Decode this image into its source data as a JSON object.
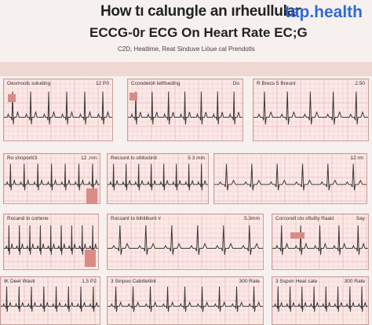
{
  "header": {
    "title_line1": "How tı calungle an ırheullular",
    "title_line2": "ECCG-0r ECG On Heart Rate EC;G",
    "subtitle": "C2D, Heatlime, Reat Sinduve Liöue cal Prendotls",
    "brand": "tap.health"
  },
  "panels": [
    {
      "label": "Oesmools soluding",
      "rlabel": "12 P0",
      "beats": 6
    },
    {
      "label": "Ccondetoll Ietlfoeding",
      "rlabel": "Do",
      "beats": 7
    },
    {
      "label": "R Brecs 5 Breunt",
      "rlabel": "2.50",
      "beats": 5
    },
    {
      "label": "Ro shoporll/3",
      "rlabel": "12 .nm",
      "beats": 7
    },
    {
      "label": "Recsont lo shlloclinit",
      "rlabel": "5 3 mm",
      "beats": 8
    },
    {
      "label": "",
      "rlabel": "12 rm",
      "beats": 6
    },
    {
      "label": "Rocand lo cortene",
      "rlabel": "",
      "beats": 9
    },
    {
      "label": "Rocsant to bihliibunt #",
      "rlabel": "5.3mm",
      "beats": 6
    },
    {
      "label": "Corcondl cto sflulity Raalz",
      "rlabel": "Say",
      "beats": 5
    },
    {
      "label": "IK Deet Wastr",
      "rlabel": "1.5 P2",
      "beats": 8
    },
    {
      "label": "3 Sinpoo Cabitletilnt",
      "rlabel": "300 Rate",
      "beats": 9
    },
    {
      "label": "3 Sspon Heat cate",
      "rlabel": "300 Rate",
      "beats": 8
    }
  ],
  "colors": {
    "grid": "#e9b8b2",
    "trace": "#3a3a3a",
    "panel_bg": "#fbe9e7",
    "brand": "#2f6bd6"
  }
}
